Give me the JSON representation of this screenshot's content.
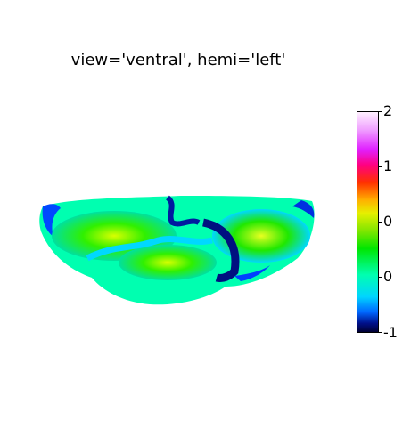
{
  "title": "view='ventral', hemi='left'",
  "colorbar": {
    "ticks": [
      "2",
      "1",
      "0",
      "0",
      "-1"
    ],
    "colormap": "gist_ncar"
  }
}
